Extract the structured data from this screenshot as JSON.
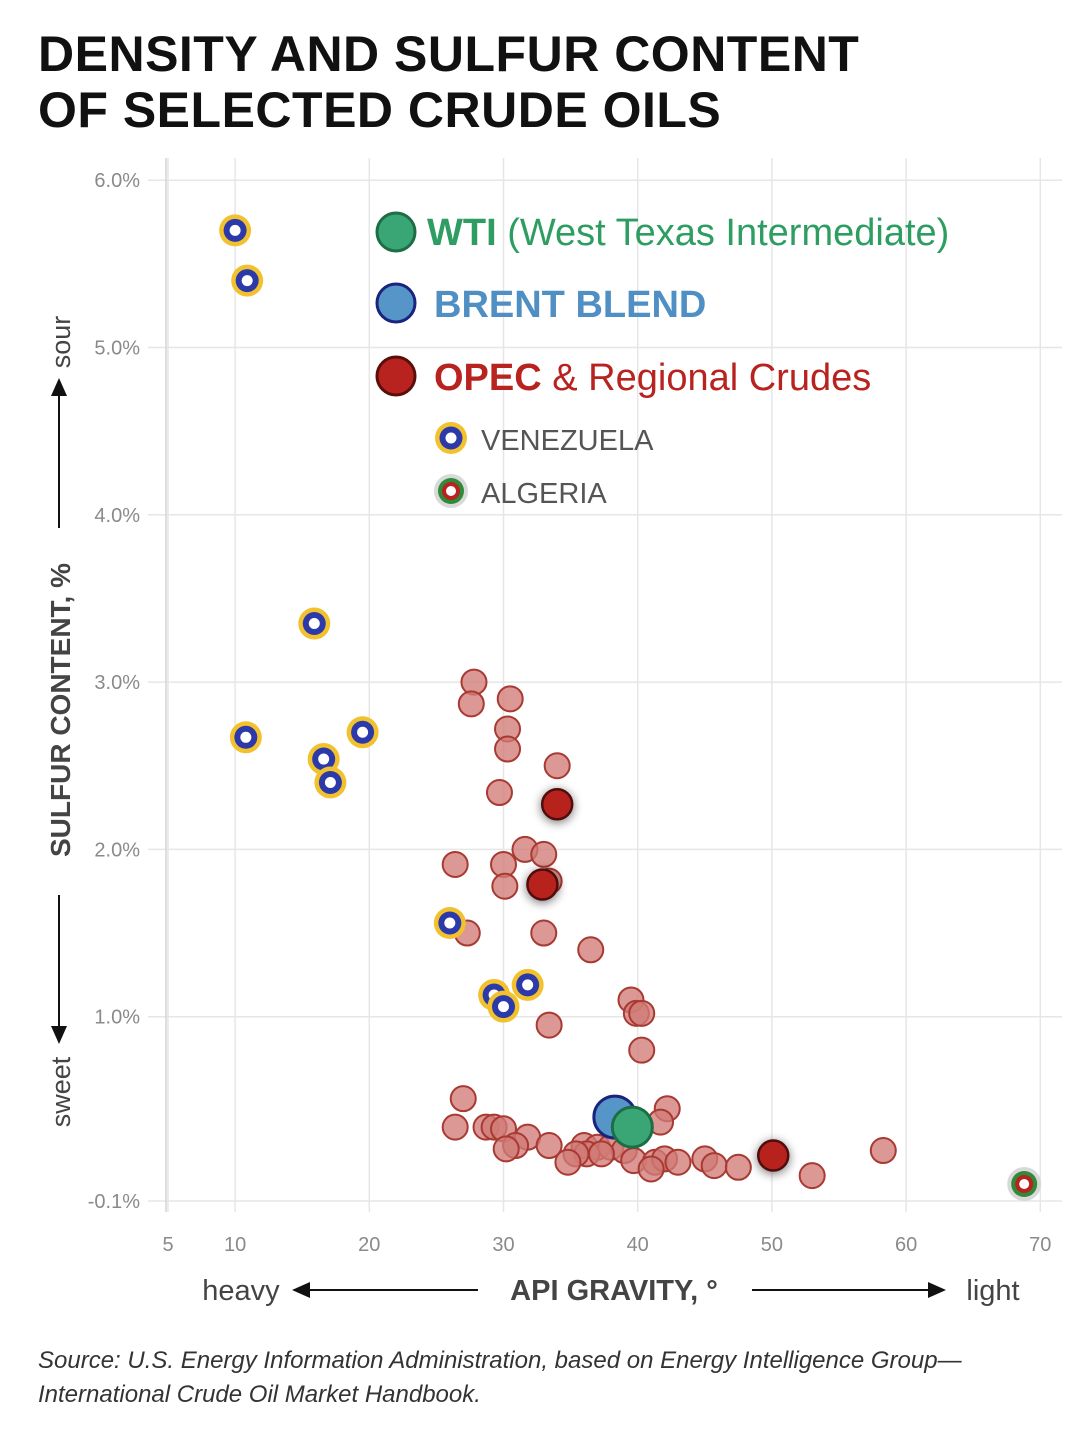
{
  "title": {
    "line1": "DENSITY AND SULFUR CONTENT",
    "line2": "OF SELECTED CRUDE OILS"
  },
  "source": {
    "line1": "Source: U.S. Energy Information Administration, based on Energy Intelligence Group—",
    "line2": "International Crude Oil Market Handbook."
  },
  "colors": {
    "wti": "#3aa676",
    "wti_text": "#2e9d61",
    "brent": "#5595c8",
    "brent_text": "#4f8fc3",
    "opec": "#b8231f",
    "opec_light": "#d17b76",
    "venezuela_ring": "#f2c12e",
    "venezuela_mid": "#2b3aa8",
    "algeria_ring": "#2e8b3a"
  },
  "legend": {
    "wti_bold": "WTI",
    "wti_rest": " (West Texas Intermediate)",
    "brent": "BRENT BLEND",
    "opec_bold": "OPEC",
    "opec_rest": " & Regional Crudes",
    "venezuela": "VENEZUELA",
    "algeria": "ALGERIA"
  },
  "chart_data": {
    "type": "scatter",
    "title": "DENSITY AND SULFUR CONTENT OF SELECTED CRUDE OILS",
    "xlabel": "API GRAVITY, °",
    "ylabel": "SULFUR CONTENT, %",
    "x_annotations": {
      "left": "heavy",
      "right": "light"
    },
    "y_annotations": {
      "top": "sour",
      "bottom": "sweet"
    },
    "xlim": [
      5,
      71
    ],
    "ylim": [
      -0.1,
      6.0
    ],
    "x_ticks": [
      5,
      10,
      20,
      30,
      40,
      50,
      60,
      70
    ],
    "x_tick_labels": [
      "5",
      "10",
      "20",
      "30",
      "40",
      "50",
      "60",
      "70"
    ],
    "y_ticks": [
      -0.1,
      1.0,
      2.0,
      3.0,
      4.0,
      5.0,
      6.0
    ],
    "y_tick_labels": [
      "-0.1%",
      "1.0%",
      "2.0%",
      "3.0%",
      "4.0%",
      "5.0%",
      "6.0%"
    ],
    "grid": true,
    "series": [
      {
        "name": "OPEC & Regional Crudes",
        "points": [
          [
            27.8,
            3.0
          ],
          [
            27.6,
            2.87
          ],
          [
            30.5,
            2.9
          ],
          [
            30.3,
            2.72
          ],
          [
            30.3,
            2.6
          ],
          [
            34.0,
            2.5
          ],
          [
            29.7,
            2.34
          ],
          [
            31.6,
            2.0
          ],
          [
            33.0,
            1.97
          ],
          [
            26.4,
            1.91
          ],
          [
            30.0,
            1.91
          ],
          [
            33.4,
            1.81
          ],
          [
            30.1,
            1.78
          ],
          [
            27.3,
            1.5
          ],
          [
            33.0,
            1.5
          ],
          [
            36.5,
            1.4
          ],
          [
            39.5,
            1.1
          ],
          [
            39.9,
            1.02
          ],
          [
            40.3,
            1.02
          ],
          [
            33.4,
            0.95
          ],
          [
            40.3,
            0.8
          ],
          [
            27.0,
            0.51
          ],
          [
            42.2,
            0.45
          ],
          [
            38.0,
            0.42
          ],
          [
            26.4,
            0.34
          ],
          [
            28.7,
            0.34
          ],
          [
            29.3,
            0.34
          ],
          [
            30.0,
            0.33
          ],
          [
            41.7,
            0.37
          ],
          [
            31.8,
            0.28
          ],
          [
            30.9,
            0.23
          ],
          [
            30.2,
            0.21
          ],
          [
            33.4,
            0.23
          ],
          [
            36.0,
            0.23
          ],
          [
            37.0,
            0.22
          ],
          [
            38.0,
            0.22
          ],
          [
            39.0,
            0.2
          ],
          [
            36.2,
            0.18
          ],
          [
            35.4,
            0.18
          ],
          [
            34.8,
            0.13
          ],
          [
            37.3,
            0.18
          ],
          [
            39.7,
            0.14
          ],
          [
            41.3,
            0.13
          ],
          [
            42.0,
            0.15
          ],
          [
            43.0,
            0.13
          ],
          [
            45.0,
            0.15
          ],
          [
            45.7,
            0.11
          ],
          [
            47.5,
            0.1
          ],
          [
            41.0,
            0.09
          ],
          [
            53.0,
            0.05
          ],
          [
            58.3,
            0.2
          ]
        ]
      },
      {
        "name": "OPEC (highlighted)",
        "points": [
          [
            34.0,
            2.27
          ],
          [
            32.9,
            1.79
          ],
          [
            50.1,
            0.17
          ]
        ]
      },
      {
        "name": "VENEZUELA",
        "points": [
          [
            10.0,
            5.7
          ],
          [
            10.9,
            5.4
          ],
          [
            15.9,
            3.35
          ],
          [
            10.8,
            2.67
          ],
          [
            19.5,
            2.7
          ],
          [
            16.6,
            2.54
          ],
          [
            17.1,
            2.4
          ],
          [
            26.0,
            1.56
          ],
          [
            29.3,
            1.13
          ],
          [
            31.8,
            1.19
          ],
          [
            30.0,
            1.06
          ]
        ]
      },
      {
        "name": "ALGERIA",
        "points": [
          [
            68.8,
            0.0
          ]
        ]
      },
      {
        "name": "BRENT BLEND",
        "points": [
          [
            38.3,
            0.4
          ]
        ]
      },
      {
        "name": "WTI (West Texas Intermediate)",
        "points": [
          [
            39.6,
            0.34
          ]
        ]
      }
    ]
  }
}
